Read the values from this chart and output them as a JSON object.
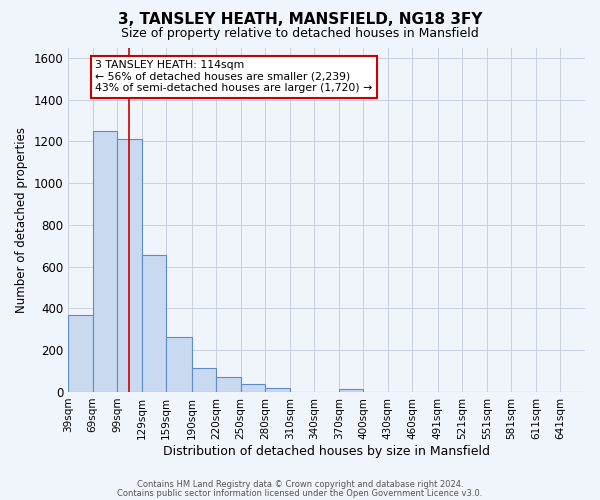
{
  "title": "3, TANSLEY HEATH, MANSFIELD, NG18 3FY",
  "subtitle": "Size of property relative to detached houses in Mansfield",
  "xlabel": "Distribution of detached houses by size in Mansfield",
  "ylabel": "Number of detached properties",
  "footnote1": "Contains HM Land Registry data © Crown copyright and database right 2024.",
  "footnote2": "Contains public sector information licensed under the Open Government Licence v3.0.",
  "bar_labels": [
    "39sqm",
    "69sqm",
    "99sqm",
    "129sqm",
    "159sqm",
    "190sqm",
    "220sqm",
    "250sqm",
    "280sqm",
    "310sqm",
    "340sqm",
    "370sqm",
    "400sqm",
    "430sqm",
    "460sqm",
    "491sqm",
    "521sqm",
    "551sqm",
    "581sqm",
    "611sqm",
    "641sqm"
  ],
  "bar_values": [
    370,
    1250,
    1210,
    655,
    265,
    115,
    70,
    38,
    18,
    0,
    0,
    15,
    0,
    0,
    0,
    0,
    0,
    0,
    0,
    0,
    0
  ],
  "bar_color": "#c9d9f0",
  "bar_edge_color": "#5b8ec7",
  "ylim": [
    0,
    1650
  ],
  "yticks": [
    0,
    200,
    400,
    600,
    800,
    1000,
    1200,
    1400,
    1600
  ],
  "property_line_x": 114,
  "property_line_color": "#cc0000",
  "annotation_title": "3 TANSLEY HEATH: 114sqm",
  "annotation_line1": "← 56% of detached houses are smaller (2,239)",
  "annotation_line2": "43% of semi-detached houses are larger (1,720) →",
  "annotation_box_color": "#ffffff",
  "annotation_box_edge": "#cc0000",
  "background_color": "#f0f4fb",
  "grid_color": "#c8d0e0",
  "bin_edges": [
    39,
    69,
    99,
    129,
    159,
    190,
    220,
    250,
    280,
    310,
    340,
    370,
    400,
    430,
    460,
    491,
    521,
    551,
    581,
    611,
    641,
    671
  ]
}
